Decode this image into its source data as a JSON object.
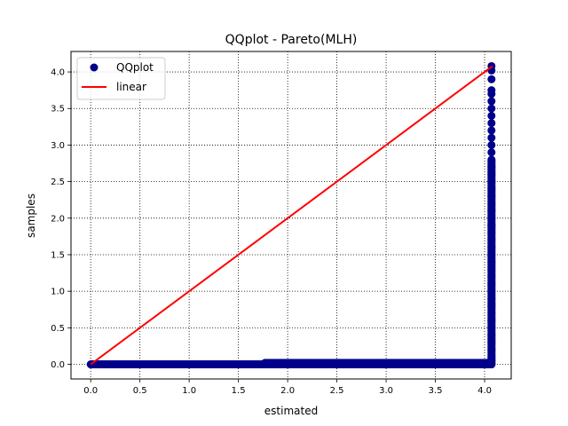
{
  "chart_data": {
    "type": "scatter",
    "title": "QQplot - Pareto(MLH)",
    "xlabel": "estimated",
    "ylabel": "samples",
    "xlim": [
      -0.2,
      4.27
    ],
    "ylim": [
      -0.2,
      4.28
    ],
    "xticks": [
      0.0,
      0.5,
      1.0,
      1.5,
      2.0,
      2.5,
      3.0,
      3.5,
      4.0
    ],
    "yticks": [
      0.0,
      0.5,
      1.0,
      1.5,
      2.0,
      2.5,
      3.0,
      3.5,
      4.0
    ],
    "grid": true,
    "grid_style": "dotted",
    "legend_position": "upper-left",
    "series": [
      {
        "name": "QQplot",
        "kind": "markers",
        "color": "#00008b",
        "points_horizontal_band": {
          "x_from": 0.0,
          "x_to": 4.07,
          "y": 0.0
        },
        "points_raised_band": {
          "x_from": 1.77,
          "x_to": 4.05,
          "y": 0.02
        },
        "points_vertical_tail": {
          "x": 4.07,
          "y_values": [
            0.05,
            0.1,
            0.2,
            0.3,
            0.4,
            0.5,
            0.6,
            0.7,
            0.8,
            0.9,
            1.0,
            1.1,
            1.2,
            1.3,
            1.4,
            1.5,
            1.6,
            1.7,
            1.8,
            1.9,
            2.0,
            2.1,
            2.2,
            2.3,
            2.4,
            2.5,
            2.6,
            2.7,
            2.8,
            2.9,
            3.0,
            3.1,
            3.2,
            3.3,
            3.4,
            3.5,
            3.6,
            3.7,
            3.75,
            3.9,
            4.02,
            4.08
          ]
        }
      },
      {
        "name": "linear",
        "kind": "line",
        "color": "#ff0000",
        "x": [
          0.0,
          4.08
        ],
        "y": [
          0.0,
          4.08
        ]
      }
    ]
  }
}
